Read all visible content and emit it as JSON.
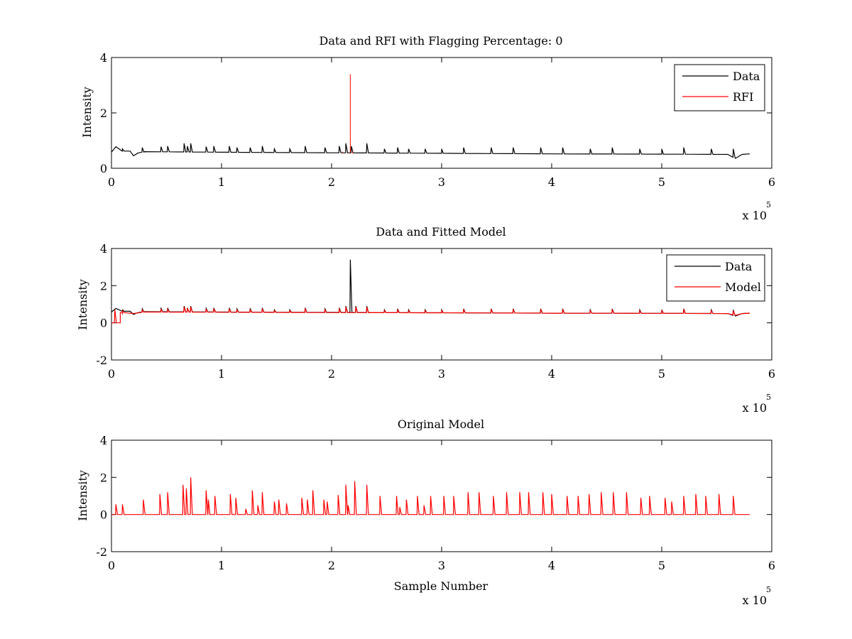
{
  "chart_data": [
    {
      "type": "line",
      "title": "Data and RFI with Flagging Percentage: 0",
      "xlabel": "",
      "ylabel": "Intensity",
      "xlim": [
        0,
        600000
      ],
      "ylim": [
        0,
        4
      ],
      "xticks": [
        0,
        1,
        2,
        3,
        4,
        5,
        6
      ],
      "yticks": [
        0,
        2,
        4
      ],
      "x_exponent": {
        "prefix": "x 10",
        "power": "5"
      },
      "legend": {
        "position": "top-right",
        "entries": [
          {
            "name": "Data",
            "color": "#000000"
          },
          {
            "name": "RFI",
            "color": "#ff0000"
          }
        ]
      },
      "series": [
        {
          "name": "Data",
          "color": "#000000",
          "kind": "baseline-with-spikes",
          "start": 0,
          "end": 580000,
          "baseline": [
            [
              0,
              0.58
            ],
            [
              4000,
              0.78
            ],
            [
              10000,
              0.62
            ],
            [
              17000,
              0.62
            ],
            [
              20000,
              0.45
            ],
            [
              24000,
              0.55
            ],
            [
              30000,
              0.6
            ],
            [
              100000,
              0.58
            ],
            [
              200000,
              0.56
            ],
            [
              300000,
              0.54
            ],
            [
              400000,
              0.52
            ],
            [
              500000,
              0.51
            ],
            [
              560000,
              0.5
            ],
            [
              567000,
              0.36
            ],
            [
              573000,
              0.5
            ],
            [
              580000,
              0.52
            ]
          ],
          "spikes": [
            [
              10000,
              0.7
            ],
            [
              28000,
              0.75
            ],
            [
              45000,
              0.78
            ],
            [
              51000,
              0.8
            ],
            [
              66000,
              0.9
            ],
            [
              69000,
              0.8
            ],
            [
              72000,
              0.9
            ],
            [
              86000,
              0.78
            ],
            [
              93000,
              0.8
            ],
            [
              107000,
              0.8
            ],
            [
              114000,
              0.75
            ],
            [
              126000,
              0.75
            ],
            [
              137000,
              0.8
            ],
            [
              148000,
              0.7
            ],
            [
              162000,
              0.7
            ],
            [
              176000,
              0.8
            ],
            [
              194000,
              0.75
            ],
            [
              207000,
              0.8
            ],
            [
              213000,
              0.9
            ],
            [
              218000,
              0.8
            ],
            [
              232000,
              0.9
            ],
            [
              248000,
              0.7
            ],
            [
              260000,
              0.75
            ],
            [
              270000,
              0.7
            ],
            [
              285000,
              0.7
            ],
            [
              300000,
              0.7
            ],
            [
              320000,
              0.75
            ],
            [
              345000,
              0.75
            ],
            [
              365000,
              0.75
            ],
            [
              390000,
              0.75
            ],
            [
              410000,
              0.75
            ],
            [
              435000,
              0.7
            ],
            [
              455000,
              0.75
            ],
            [
              480000,
              0.7
            ],
            [
              500000,
              0.7
            ],
            [
              520000,
              0.75
            ],
            [
              545000,
              0.7
            ],
            [
              565000,
              0.7
            ]
          ]
        },
        {
          "name": "RFI",
          "color": "#ff0000",
          "kind": "impulses",
          "points": [
            [
              210000,
              0.6
            ],
            [
              217000,
              3.4
            ],
            [
              219000,
              0.6
            ]
          ]
        }
      ]
    },
    {
      "type": "line",
      "title": "Data and Fitted Model",
      "xlabel": "",
      "ylabel": "Intensity",
      "xlim": [
        0,
        600000
      ],
      "ylim": [
        -2,
        4
      ],
      "xticks": [
        0,
        1,
        2,
        3,
        4,
        5,
        6
      ],
      "yticks": [
        -2,
        0,
        2,
        4
      ],
      "x_exponent": {
        "prefix": "x 10",
        "power": "5"
      },
      "legend": {
        "position": "top-right",
        "entries": [
          {
            "name": "Data",
            "color": "#000000"
          },
          {
            "name": "Model",
            "color": "#ff0000"
          }
        ]
      },
      "series": [
        {
          "name": "Data",
          "color": "#000000",
          "kind": "baseline-with-spikes",
          "start": 0,
          "end": 580000,
          "baseline": [
            [
              0,
              0.58
            ],
            [
              4000,
              0.78
            ],
            [
              10000,
              0.62
            ],
            [
              17000,
              0.62
            ],
            [
              20000,
              0.45
            ],
            [
              24000,
              0.55
            ],
            [
              30000,
              0.6
            ],
            [
              100000,
              0.58
            ],
            [
              200000,
              0.56
            ],
            [
              300000,
              0.54
            ],
            [
              400000,
              0.52
            ],
            [
              500000,
              0.51
            ],
            [
              560000,
              0.5
            ],
            [
              567000,
              0.36
            ],
            [
              573000,
              0.5
            ],
            [
              580000,
              0.52
            ]
          ],
          "spikes": [
            [
              10000,
              0.7
            ],
            [
              28000,
              0.75
            ],
            [
              45000,
              0.78
            ],
            [
              51000,
              0.8
            ],
            [
              66000,
              0.9
            ],
            [
              69000,
              0.8
            ],
            [
              72000,
              0.9
            ],
            [
              86000,
              0.78
            ],
            [
              93000,
              0.8
            ],
            [
              107000,
              0.8
            ],
            [
              114000,
              0.75
            ],
            [
              126000,
              0.75
            ],
            [
              137000,
              0.8
            ],
            [
              148000,
              0.7
            ],
            [
              162000,
              0.7
            ],
            [
              176000,
              0.8
            ],
            [
              194000,
              0.75
            ],
            [
              207000,
              0.8
            ],
            [
              213000,
              0.9
            ],
            [
              217000,
              3.4
            ],
            [
              222000,
              0.9
            ],
            [
              232000,
              0.9
            ],
            [
              248000,
              0.7
            ],
            [
              260000,
              0.75
            ],
            [
              270000,
              0.7
            ],
            [
              285000,
              0.7
            ],
            [
              300000,
              0.7
            ],
            [
              320000,
              0.75
            ],
            [
              345000,
              0.75
            ],
            [
              365000,
              0.75
            ],
            [
              390000,
              0.75
            ],
            [
              410000,
              0.75
            ],
            [
              435000,
              0.7
            ],
            [
              455000,
              0.75
            ],
            [
              480000,
              0.7
            ],
            [
              500000,
              0.7
            ],
            [
              520000,
              0.75
            ],
            [
              545000,
              0.7
            ],
            [
              565000,
              0.7
            ]
          ]
        },
        {
          "name": "Model",
          "color": "#ff0000",
          "kind": "baseline-with-spikes",
          "start": 0,
          "end": 580000,
          "baseline": [
            [
              0,
              0.0
            ],
            [
              8000,
              0.0
            ],
            [
              8000,
              0.55
            ],
            [
              10000,
              0.55
            ],
            [
              10000,
              0.45
            ],
            [
              20000,
              0.5
            ],
            [
              30000,
              0.58
            ],
            [
              100000,
              0.57
            ],
            [
              200000,
              0.55
            ],
            [
              300000,
              0.54
            ],
            [
              400000,
              0.52
            ],
            [
              500000,
              0.51
            ],
            [
              560000,
              0.5
            ],
            [
              567000,
              0.4
            ],
            [
              573000,
              0.5
            ],
            [
              580000,
              0.52
            ]
          ],
          "spikes": [
            [
              3000,
              0.7
            ],
            [
              10000,
              0.65
            ],
            [
              28000,
              0.7
            ],
            [
              45000,
              0.72
            ],
            [
              51000,
              0.74
            ],
            [
              66000,
              0.85
            ],
            [
              69000,
              0.8
            ],
            [
              72000,
              0.85
            ],
            [
              86000,
              0.72
            ],
            [
              93000,
              0.74
            ],
            [
              107000,
              0.74
            ],
            [
              114000,
              0.7
            ],
            [
              126000,
              0.7
            ],
            [
              137000,
              0.74
            ],
            [
              148000,
              0.65
            ],
            [
              162000,
              0.65
            ],
            [
              176000,
              0.74
            ],
            [
              194000,
              0.7
            ],
            [
              207000,
              0.74
            ],
            [
              213000,
              0.85
            ],
            [
              222000,
              0.85
            ],
            [
              232000,
              0.85
            ],
            [
              248000,
              0.65
            ],
            [
              260000,
              0.7
            ],
            [
              270000,
              0.65
            ],
            [
              285000,
              0.65
            ],
            [
              300000,
              0.65
            ],
            [
              320000,
              0.7
            ],
            [
              345000,
              0.7
            ],
            [
              365000,
              0.7
            ],
            [
              390000,
              0.7
            ],
            [
              410000,
              0.7
            ],
            [
              435000,
              0.65
            ],
            [
              455000,
              0.7
            ],
            [
              480000,
              0.65
            ],
            [
              500000,
              0.65
            ],
            [
              520000,
              0.7
            ],
            [
              545000,
              0.65
            ],
            [
              565000,
              0.65
            ]
          ]
        }
      ]
    },
    {
      "type": "line",
      "title": "Original Model",
      "xlabel": "Sample Number",
      "ylabel": "Intensity",
      "xlim": [
        0,
        600000
      ],
      "ylim": [
        -2,
        4
      ],
      "xticks": [
        0,
        1,
        2,
        3,
        4,
        5,
        6
      ],
      "yticks": [
        -2,
        0,
        2,
        4
      ],
      "x_exponent": {
        "prefix": "x 10",
        "power": "5"
      },
      "legend": null,
      "series": [
        {
          "name": "",
          "color": "#ff0000",
          "kind": "baseline-with-spikes",
          "start": 0,
          "end": 580000,
          "baseline": [
            [
              0,
              0.0
            ],
            [
              580000,
              0.0
            ]
          ],
          "spikes": [
            [
              4000,
              0.55
            ],
            [
              10000,
              0.55
            ],
            [
              29000,
              0.8
            ],
            [
              44000,
              1.1
            ],
            [
              51000,
              1.2
            ],
            [
              65000,
              1.6
            ],
            [
              68000,
              1.4
            ],
            [
              72000,
              2.0
            ],
            [
              86000,
              1.3
            ],
            [
              88000,
              0.8
            ],
            [
              94000,
              1.0
            ],
            [
              108000,
              1.1
            ],
            [
              113000,
              0.9
            ],
            [
              122000,
              0.3
            ],
            [
              128000,
              1.3
            ],
            [
              133000,
              0.5
            ],
            [
              137000,
              1.2
            ],
            [
              148000,
              0.7
            ],
            [
              152000,
              0.8
            ],
            [
              159000,
              0.6
            ],
            [
              173000,
              0.9
            ],
            [
              178000,
              0.8
            ],
            [
              183000,
              1.3
            ],
            [
              193000,
              0.8
            ],
            [
              196000,
              0.7
            ],
            [
              206000,
              1.05
            ],
            [
              213000,
              1.6
            ],
            [
              215000,
              0.5
            ],
            [
              221000,
              1.8
            ],
            [
              232000,
              1.6
            ],
            [
              244000,
              1.0
            ],
            [
              259000,
              1.0
            ],
            [
              262000,
              0.4
            ],
            [
              268000,
              0.8
            ],
            [
              278000,
              1.0
            ],
            [
              284000,
              0.5
            ],
            [
              290000,
              1.0
            ],
            [
              302000,
              1.0
            ],
            [
              311000,
              1.0
            ],
            [
              324000,
              1.2
            ],
            [
              334000,
              1.2
            ],
            [
              347000,
              1.0
            ],
            [
              359000,
              1.2
            ],
            [
              371000,
              1.2
            ],
            [
              379000,
              1.2
            ],
            [
              392000,
              1.2
            ],
            [
              400000,
              1.1
            ],
            [
              414000,
              1.0
            ],
            [
              424000,
              1.0
            ],
            [
              434000,
              1.1
            ],
            [
              445000,
              1.2
            ],
            [
              456000,
              1.2
            ],
            [
              468000,
              1.2
            ],
            [
              481000,
              0.9
            ],
            [
              489000,
              1.0
            ],
            [
              503000,
              0.9
            ],
            [
              509000,
              0.7
            ],
            [
              520000,
              1.0
            ],
            [
              531000,
              1.1
            ],
            [
              540000,
              1.0
            ],
            [
              552000,
              1.1
            ],
            [
              565000,
              1.0
            ]
          ]
        }
      ]
    }
  ]
}
